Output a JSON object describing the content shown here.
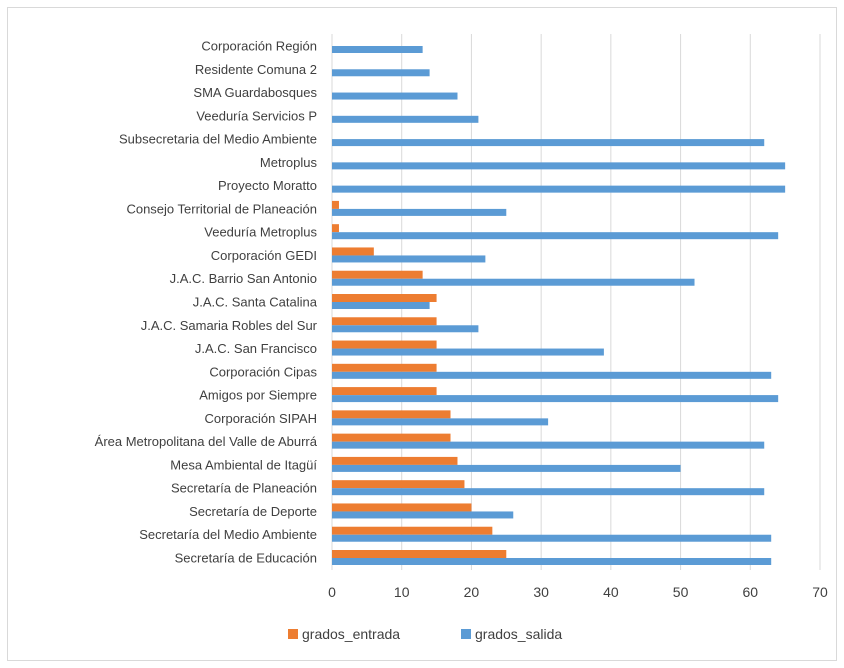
{
  "chart_data": {
    "type": "bar",
    "orientation": "horizontal",
    "categories": [
      "Secretaría de Educación",
      "Secretaría del Medio Ambiente",
      "Secretaría de Deporte",
      "Secretaría de Planeación",
      "Mesa Ambiental de Itagüí",
      "Área Metropolitana del Valle de Aburrá",
      "Corporación SIPAH",
      "Amigos por Siempre",
      "Corporación Cipas",
      "J.A.C. San Francisco",
      "J.A.C. Samaria Robles del Sur",
      "J.A.C. Santa Catalina",
      "J.A.C. Barrio San Antonio",
      "Corporación GEDI",
      "Veeduría Metroplus",
      "Consejo Territorial de Planeación",
      "Proyecto Moratto",
      "Metroplus",
      "Subsecretaria del Medio Ambiente",
      "Veeduría Servicios P",
      "SMA Guardabosques",
      "Residente Comuna 2",
      "Corporación Región"
    ],
    "series": [
      {
        "name": "grados_entrada",
        "color": "#ed7d31",
        "values": [
          25,
          23,
          20,
          19,
          18,
          17,
          17,
          15,
          15,
          15,
          15,
          15,
          13,
          6,
          1,
          1,
          0,
          0,
          0,
          0,
          0,
          0,
          0
        ]
      },
      {
        "name": "grados_salida",
        "color": "#5b9bd5",
        "values": [
          63,
          63,
          26,
          62,
          50,
          62,
          31,
          64,
          63,
          39,
          21,
          14,
          52,
          22,
          64,
          25,
          65,
          65,
          62,
          21,
          18,
          14,
          13
        ]
      }
    ],
    "xlim": [
      0,
      70
    ],
    "xticks": [
      "0",
      "10",
      "20",
      "30",
      "40",
      "50",
      "60",
      "70"
    ],
    "grid": true,
    "legend_position": "bottom"
  }
}
